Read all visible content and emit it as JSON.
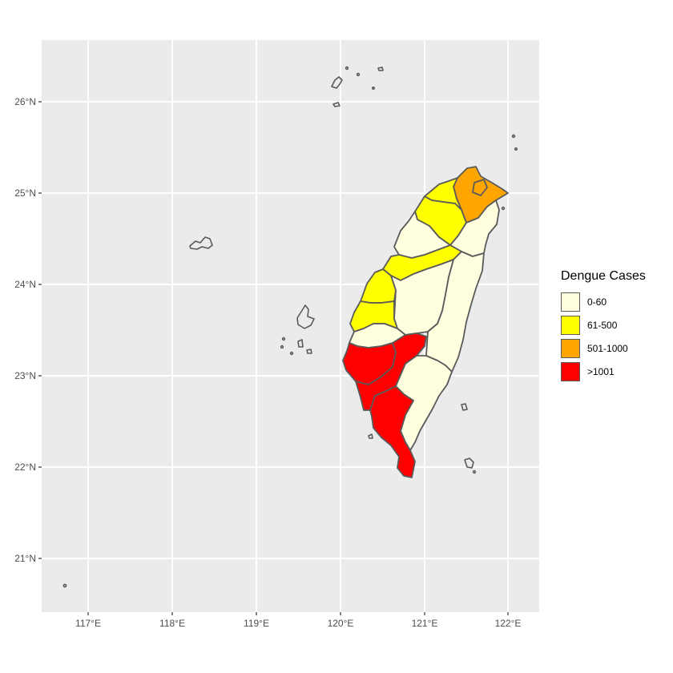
{
  "map": {
    "x_ticks": [
      "117°E",
      "118°E",
      "119°E",
      "120°E",
      "121°E",
      "122°E"
    ],
    "y_ticks": [
      "21°N",
      "22°N",
      "23°N",
      "24°N",
      "25°N",
      "26°N"
    ],
    "panel_color": "#ebebeb",
    "border_color": "#5a5a5a"
  },
  "legend": {
    "title": "Dengue Cases",
    "items": [
      {
        "label": "0-60",
        "color": "#ffffe0"
      },
      {
        "label": "61-500",
        "color": "#ffff00"
      },
      {
        "label": "501-1000",
        "color": "#ffa500"
      },
      {
        "label": ">1001",
        "color": "#ff0000"
      }
    ]
  }
}
